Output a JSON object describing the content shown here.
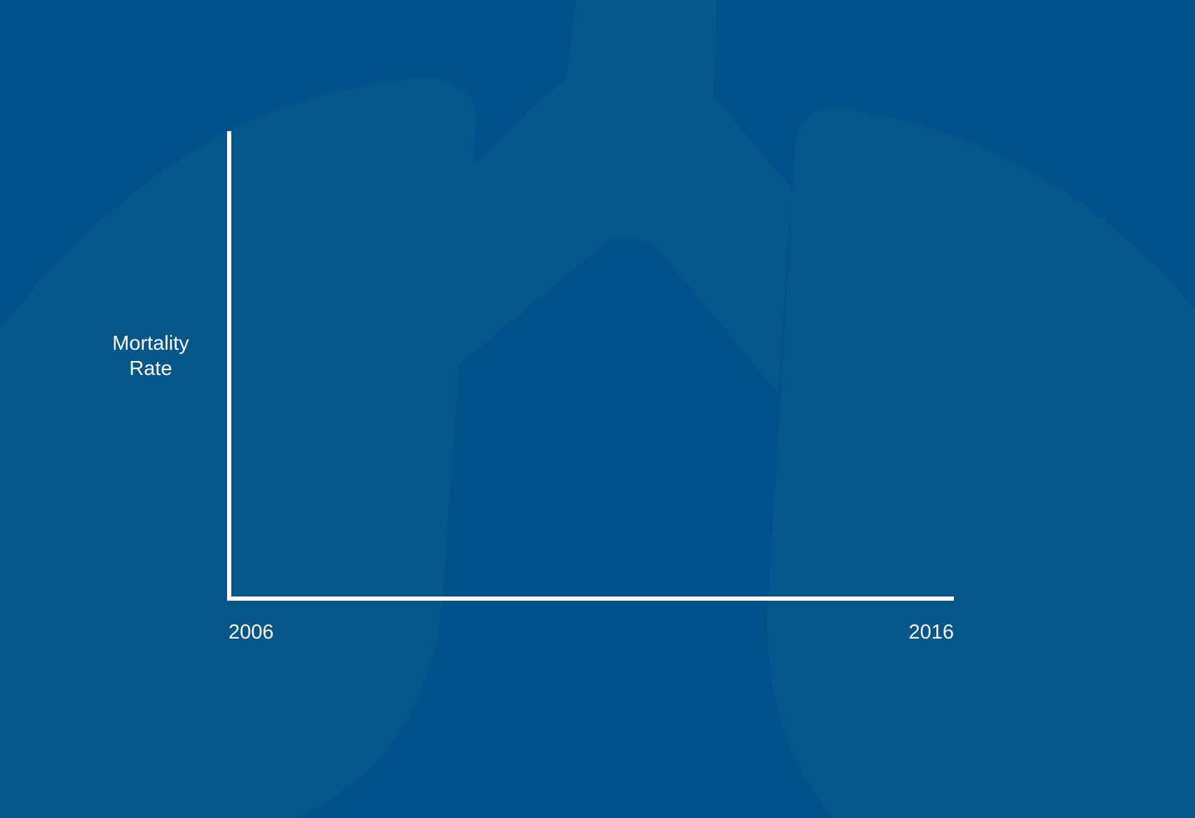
{
  "colors": {
    "background": "#00518a",
    "lung_art": "#07568a",
    "axis": "#ffffff",
    "text": "#ffffff"
  },
  "background_art": "lungs-illustration",
  "chart_data": {
    "type": "line",
    "title": "",
    "xlabel": "",
    "ylabel_lines": [
      "Mortality",
      "Rate"
    ],
    "x_ticks": [
      "2006",
      "2016"
    ],
    "xlim": [
      2006,
      2016
    ],
    "series": [],
    "grid": false
  }
}
